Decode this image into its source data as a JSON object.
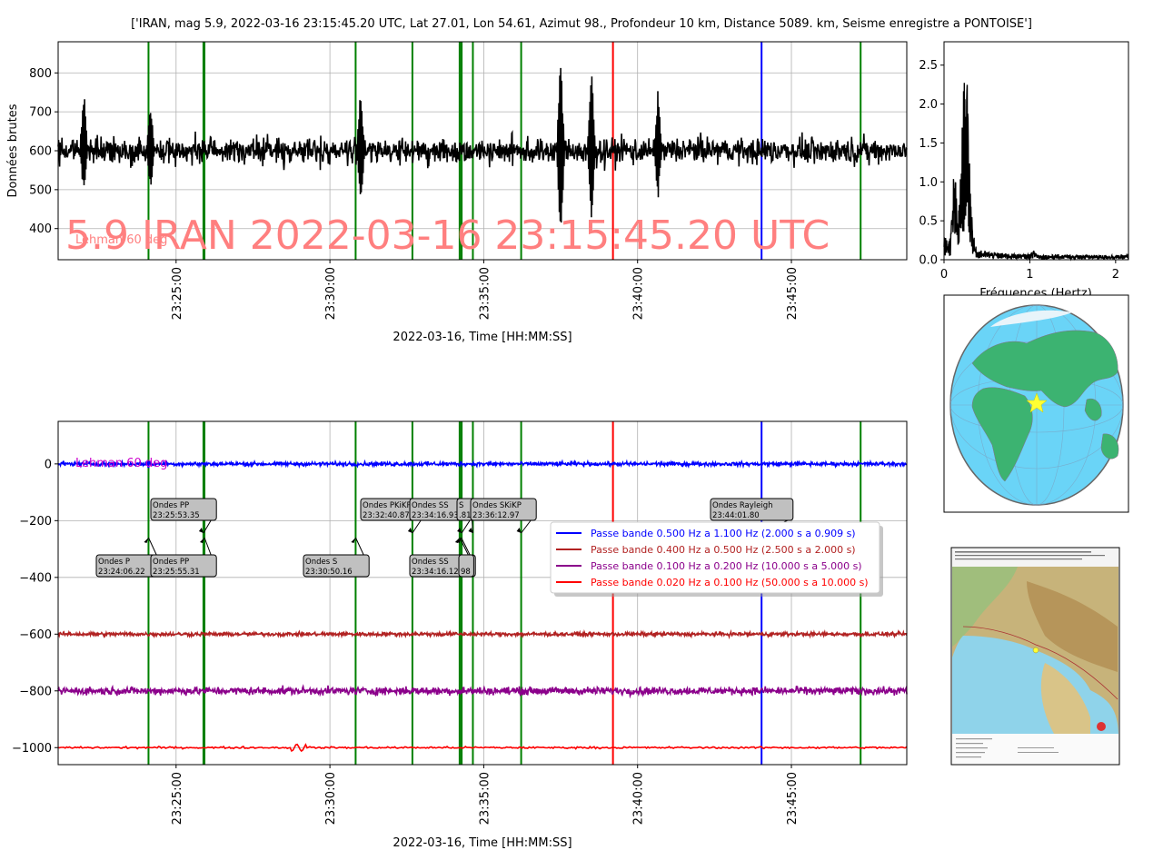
{
  "figure_title": "['IRAN, mag 5.9, 2022-03-16 23:15:45.20 UTC, Lat 27.01, Lon 54.61, Azimut 98., Profondeur 10 km, Distance 5089. km, Seisme enregistre a PONTOISE']",
  "colors": {
    "raw_trace": "#000000",
    "overlay_text": "#ff7f7f",
    "lehman_top": "#ff7f7f",
    "lehman_bottom": "#cc00cc",
    "p_marker": "#008000",
    "red_marker": "#ff0000",
    "blue_marker": "#0000ff",
    "grid": "#b0b0b0"
  },
  "chart_data": [
    {
      "type": "line",
      "panel": "raw",
      "ylabel": "Données brutes",
      "xlabel": "2022-03-16, Time [HH:MM:SS]",
      "x_range": [
        "23:21:10",
        "23:48:45"
      ],
      "ylim": [
        320,
        880
      ],
      "yticks": [
        400,
        500,
        600,
        700,
        800
      ],
      "xticks": [
        "23:25:00",
        "23:30:00",
        "23:35:00",
        "23:40:00",
        "23:45:00"
      ],
      "grid": true,
      "overlay_text": "5.9 IRAN 2022-03-16 23:15:45.20 UTC",
      "lehman_label": "Lehman 60 deg",
      "series": [
        {
          "name": "",
          "color": "#000000",
          "baseline": 600,
          "amplitude_typical": 60,
          "bursts": [
            {
              "t": "23:22:00",
              "peak": 770,
              "trough": 480
            },
            {
              "t": "23:24:10",
              "peak": 740,
              "trough": 490
            },
            {
              "t": "23:31:00",
              "peak": 770,
              "trough": 445
            },
            {
              "t": "23:37:30",
              "peak": 860,
              "trough": 350
            },
            {
              "t": "23:38:30",
              "peak": 840,
              "trough": 400
            },
            {
              "t": "23:40:40",
              "peak": 770,
              "trough": 470
            }
          ]
        }
      ]
    },
    {
      "type": "line",
      "panel": "spectrum",
      "xlabel": "Fréquences (Hertz)",
      "xlim": [
        0,
        2.15
      ],
      "ylim": [
        0,
        2.8
      ],
      "xticks": [
        0,
        1,
        2
      ],
      "yticks": [
        0.0,
        0.5,
        1.0,
        1.5,
        2.0,
        2.5
      ],
      "peak": {
        "f": 0.25,
        "value": 2.35
      },
      "secondary_peak": {
        "f": 0.12,
        "value": 0.95
      }
    },
    {
      "type": "line",
      "panel": "filtered",
      "xlabel": "2022-03-16, Time [HH:MM:SS]",
      "x_range": [
        "23:21:10",
        "23:48:45"
      ],
      "ylim": [
        -1060,
        150
      ],
      "yticks": [
        0,
        -200,
        -400,
        -600,
        -800,
        -1000
      ],
      "xticks": [
        "23:25:00",
        "23:30:00",
        "23:35:00",
        "23:40:00",
        "23:45:00"
      ],
      "grid": true,
      "lehman_label": "Lehman 60 deg",
      "series": [
        {
          "name": "Passe bande 0.500 Hz a 1.100 Hz (2.000 s a 0.909 s)",
          "color": "#0000ff",
          "offset": 0,
          "amplitude": 10
        },
        {
          "name": "Passe bande 0.400 Hz a 0.500 Hz (2.500 s a 2.000 s)",
          "color": "#b22222",
          "offset": -600,
          "amplitude": 10
        },
        {
          "name": "Passe bande 0.100 Hz a 0.200 Hz (10.000 s a 5.000 s)",
          "color": "#8b008b",
          "offset": -800,
          "amplitude": 20
        },
        {
          "name": "Passe bande 0.020 Hz a 0.100 Hz (50.000 s a 10.000 s)",
          "color": "#ff0000",
          "offset": -1000,
          "amplitude": 5
        }
      ],
      "phase_markers": [
        {
          "t": "23:24:06.22",
          "color": "#008000"
        },
        {
          "t": "23:25:53.35",
          "color": "#008000"
        },
        {
          "t": "23:25:55.31",
          "color": "#008000"
        },
        {
          "t": "23:30:50.16",
          "color": "#008000"
        },
        {
          "t": "23:32:40.87",
          "color": "#008000"
        },
        {
          "t": "23:34:12.98",
          "color": "#008000"
        },
        {
          "t": "23:34:16.12",
          "color": "#008000"
        },
        {
          "t": "23:34:16.93",
          "color": "#008000"
        },
        {
          "t": "23:34:38.81",
          "color": "#008000"
        },
        {
          "t": "23:36:12.97",
          "color": "#008000"
        },
        {
          "t": "23:39:12.00",
          "color": "#ff0000"
        },
        {
          "t": "23:44:01.80",
          "color": "#0000ff"
        },
        {
          "t": "23:47:15.00",
          "color": "#008000"
        }
      ],
      "annotations": [
        {
          "lines": [
            "Ondes P",
            "23:24:06.22"
          ],
          "t": "23:24:06.22",
          "row": "low"
        },
        {
          "lines": [
            "Ondes PP",
            "23:25:53.35"
          ],
          "t": "23:25:53.35",
          "row": "high"
        },
        {
          "lines": [
            "Ondes PP",
            "23:25:55.31"
          ],
          "t": "23:25:55.31",
          "row": "low"
        },
        {
          "lines": [
            "Ondes S",
            "23:30:50.16"
          ],
          "t": "23:30:50.16",
          "row": "low"
        },
        {
          "lines": [
            "Ondes PKiKP",
            "23:32:40.87"
          ],
          "t": "23:32:40.87",
          "row": "high"
        },
        {
          "lines": [
            "Ondes SS",
            "23:34:16.93"
          ],
          "t": "23:34:16.93",
          "row": "high"
        },
        {
          "lines": [
            "Ondes SS",
            "23:34:16.12"
          ],
          "t": "23:34:16.12",
          "row": "low"
        },
        {
          "lines": [
            "S",
            ".81"
          ],
          "t": "23:34:38.81",
          "row": "high"
        },
        {
          "lines": [
            "",
            "98"
          ],
          "t": "23:34:12.98",
          "row": "low"
        },
        {
          "lines": [
            "Ondes SKiKP",
            "23:36:12.97"
          ],
          "t": "23:36:12.97",
          "row": "high"
        },
        {
          "lines": [
            "Ondes Rayleigh",
            "23:44:01.80"
          ],
          "t": "23:44:01.80",
          "row": "high"
        }
      ]
    }
  ]
}
